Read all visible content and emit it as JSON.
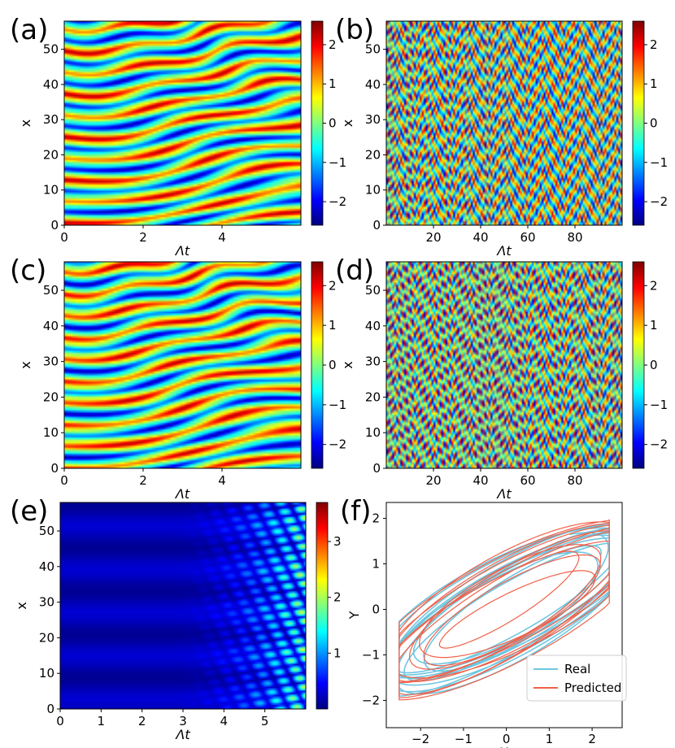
{
  "colors": {
    "jet": [
      "#00007f",
      "#0000ff",
      "#007fff",
      "#00ffff",
      "#7fff7f",
      "#ffff00",
      "#ff7f00",
      "#ff0000",
      "#7f0000"
    ],
    "real": "#6ec6e0",
    "predicted": "#f0614a"
  },
  "chart_data": [
    {
      "panel": "a",
      "type": "heatmap",
      "xlabel": "Λt",
      "ylabel": "x",
      "xlim": [
        0,
        6
      ],
      "ylim": [
        0,
        58
      ],
      "xticks": [
        0,
        2,
        4
      ],
      "yticks": [
        0,
        10,
        20,
        30,
        40,
        50
      ],
      "colorbar": {
        "range": [
          -2.6,
          2.6
        ],
        "ticks": [
          -2,
          -1,
          0,
          1,
          2
        ]
      }
    },
    {
      "panel": "b",
      "type": "heatmap",
      "xlabel": "Λt",
      "ylabel": "x",
      "xlim": [
        0,
        100
      ],
      "ylim": [
        0,
        58
      ],
      "xticks": [
        20,
        40,
        60,
        80
      ],
      "yticks": [
        0,
        10,
        20,
        30,
        40,
        50
      ],
      "colorbar": {
        "range": [
          -2.6,
          2.6
        ],
        "ticks": [
          -2,
          -1,
          0,
          1,
          2
        ]
      }
    },
    {
      "panel": "c",
      "type": "heatmap",
      "xlabel": "Λt",
      "ylabel": "x",
      "xlim": [
        0,
        6
      ],
      "ylim": [
        0,
        58
      ],
      "xticks": [
        0,
        2,
        4
      ],
      "yticks": [
        0,
        10,
        20,
        30,
        40,
        50
      ],
      "colorbar": {
        "range": [
          -2.6,
          2.6
        ],
        "ticks": [
          -2,
          -1,
          0,
          1,
          2
        ]
      }
    },
    {
      "panel": "d",
      "type": "heatmap",
      "xlabel": "Λt",
      "ylabel": "x",
      "xlim": [
        0,
        100
      ],
      "ylim": [
        0,
        58
      ],
      "xticks": [
        20,
        40,
        60,
        80
      ],
      "yticks": [
        0,
        10,
        20,
        30,
        40,
        50
      ],
      "colorbar": {
        "range": [
          -2.6,
          2.6
        ],
        "ticks": [
          -2,
          -1,
          0,
          1,
          2
        ]
      }
    },
    {
      "panel": "e",
      "type": "heatmap",
      "xlabel": "Λt",
      "ylabel": "x",
      "xlim": [
        0,
        6
      ],
      "ylim": [
        0,
        58
      ],
      "xticks": [
        0,
        1,
        2,
        3,
        4,
        5
      ],
      "yticks": [
        0,
        10,
        20,
        30,
        40,
        50
      ],
      "colorbar": {
        "range": [
          0,
          3.7
        ],
        "ticks": [
          1,
          2,
          3
        ]
      }
    },
    {
      "panel": "f",
      "type": "line",
      "xlabel": "X",
      "ylabel": "Y",
      "xlim": [
        -2.8,
        2.7
      ],
      "ylim": [
        -2.6,
        2.35
      ],
      "xticks": [
        -2,
        -1,
        0,
        1,
        2
      ],
      "yticks": [
        -2,
        -1,
        0,
        1,
        2
      ],
      "legend_position": "bottom-right",
      "series": [
        {
          "name": "Real",
          "color": "#6ec6e0"
        },
        {
          "name": "Predicted",
          "color": "#f0614a"
        }
      ]
    }
  ],
  "panels": {
    "a": {
      "label": "(a)",
      "xlabel": "Λt",
      "ylabel": "x",
      "xticks": [
        "0",
        "2",
        "4"
      ],
      "yticks": [
        "0",
        "10",
        "20",
        "30",
        "40",
        "50"
      ],
      "cbticks": [
        "−2",
        "−1",
        "0",
        "1",
        "2"
      ]
    },
    "b": {
      "label": "(b)",
      "xlabel": "Λt",
      "ylabel": "x",
      "xticks": [
        "20",
        "40",
        "60",
        "80"
      ],
      "yticks": [
        "0",
        "10",
        "20",
        "30",
        "40",
        "50"
      ],
      "cbticks": [
        "−2",
        "−1",
        "0",
        "1",
        "2"
      ]
    },
    "c": {
      "label": "(c)",
      "xlabel": "Λt",
      "ylabel": "x",
      "xticks": [
        "0",
        "2",
        "4"
      ],
      "yticks": [
        "0",
        "10",
        "20",
        "30",
        "40",
        "50"
      ],
      "cbticks": [
        "−2",
        "−1",
        "0",
        "1",
        "2"
      ]
    },
    "d": {
      "label": "(d)",
      "xlabel": "Λt",
      "ylabel": "x",
      "xticks": [
        "20",
        "40",
        "60",
        "80"
      ],
      "yticks": [
        "0",
        "10",
        "20",
        "30",
        "40",
        "50"
      ],
      "cbticks": [
        "−2",
        "−1",
        "0",
        "1",
        "2"
      ]
    },
    "e": {
      "label": "(e)",
      "xlabel": "Λt",
      "ylabel": "x",
      "xticks": [
        "0",
        "1",
        "2",
        "3",
        "4",
        "5"
      ],
      "yticks": [
        "0",
        "10",
        "20",
        "30",
        "40",
        "50"
      ],
      "cbticks": [
        "1",
        "2",
        "3"
      ]
    },
    "f": {
      "label": "(f)",
      "xlabel": "X",
      "ylabel": "Y",
      "xticks": [
        "−2",
        "−1",
        "0",
        "1",
        "2"
      ],
      "yticks": [
        "−2",
        "−1",
        "0",
        "1",
        "2"
      ],
      "legend": {
        "real": "Real",
        "predicted": "Predicted"
      }
    }
  }
}
